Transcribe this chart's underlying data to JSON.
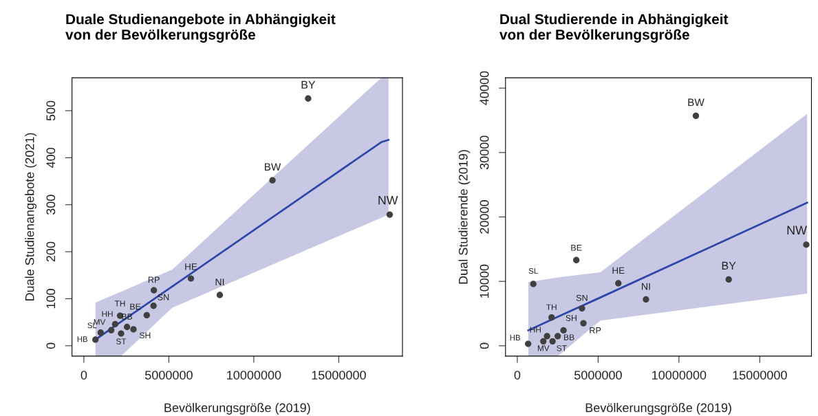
{
  "chart_data": [
    {
      "type": "scatter",
      "title": "Duale Studienangebote in Abhängigkeit\nvon der Bevölkerungsgröße",
      "xlabel": "Bevölkerungsgröße (2019)",
      "ylabel": "Duale Studienangebote (2021)",
      "xlim": [
        -700000,
        18750000
      ],
      "ylim": [
        -22,
        570
      ],
      "xticks": [
        0,
        5000000,
        10000000,
        15000000
      ],
      "yticks": [
        0,
        100,
        200,
        300,
        400,
        500
      ],
      "grid": false,
      "legend": false,
      "series": [
        {
          "type": "scatter",
          "marker": "circle",
          "color": "#404040",
          "x": [
            680000,
            990000,
            1610000,
            1840000,
            2130000,
            2190000,
            2540000,
            2920000,
            3700000,
            4100000,
            4120000,
            6300000,
            8000000,
            11100000,
            13200000,
            18000000
          ],
          "values": [
            13,
            28,
            33,
            46,
            64,
            26,
            40,
            35,
            65,
            85,
            118,
            143,
            108,
            352,
            526,
            279
          ]
        },
        {
          "type": "line",
          "marker": "none",
          "line_style": "solid",
          "color": "#2d46a8",
          "x": [
            680000,
            2190000,
            5200000,
            17500000,
            17930000
          ],
          "values": [
            13,
            51,
            126,
            433,
            438
          ],
          "lower": [
            -22,
            -22,
            81,
            272,
            279
          ],
          "upper": [
            92,
            115,
            162,
            570,
            570
          ]
        }
      ],
      "annotations": [
        {
          "text": "HB",
          "x": 680000,
          "y": 13
        },
        {
          "text": "SL",
          "x": 990000,
          "y": 28
        },
        {
          "text": "MV",
          "x": 1610000,
          "y": 33
        },
        {
          "text": "HH",
          "x": 1840000,
          "y": 46
        },
        {
          "text": "TH",
          "x": 2130000,
          "y": 64
        },
        {
          "text": "ST",
          "x": 2190000,
          "y": 26
        },
        {
          "text": "BB",
          "x": 2540000,
          "y": 40
        },
        {
          "text": "SH",
          "x": 2920000,
          "y": 35
        },
        {
          "text": "BE",
          "x": 3700000,
          "y": 65
        },
        {
          "text": "SN",
          "x": 4100000,
          "y": 85
        },
        {
          "text": "RP",
          "x": 4120000,
          "y": 118
        },
        {
          "text": "HE",
          "x": 6300000,
          "y": 143
        },
        {
          "text": "NI",
          "x": 8000000,
          "y": 108
        },
        {
          "text": "BW",
          "x": 11100000,
          "y": 352
        },
        {
          "text": "BY",
          "x": 13200000,
          "y": 526
        },
        {
          "text": "NW",
          "x": 18000000,
          "y": 279
        }
      ]
    },
    {
      "type": "scatter",
      "title": "Dual Studierende in Abhängigkeit\nvon der Bevölkerungsgröße",
      "xlabel": "Bevölkerungsgröße (2019)",
      "ylabel": "Dual Studierende (2019)",
      "xlim": [
        -730000,
        18200000
      ],
      "ylim": [
        -1600,
        41600
      ],
      "xticks": [
        0,
        5000000,
        10000000,
        15000000
      ],
      "yticks": [
        0,
        10000,
        20000,
        30000,
        40000
      ],
      "grid": false,
      "legend": false,
      "series": [
        {
          "type": "scatter",
          "marker": "circle",
          "color": "#404040",
          "x": [
            670000,
            990000,
            1610000,
            1840000,
            2120000,
            2180000,
            2500000,
            2860000,
            3650000,
            4000000,
            4090000,
            6250000,
            7960000,
            11050000,
            13080000,
            17880000
          ],
          "values": [
            300,
            9600,
            700,
            1500,
            4400,
            700,
            1500,
            2400,
            13300,
            5800,
            3500,
            9700,
            7200,
            35700,
            10300,
            15700
          ]
        },
        {
          "type": "line",
          "marker": "none",
          "line_style": "solid",
          "color": "#2d46a8",
          "x": [
            680000,
            2500000,
            5140000,
            17930000
          ],
          "values": [
            2400,
            4500,
            7500,
            22200
          ],
          "lower": [
            -1600,
            -1600,
            3900,
            8100
          ],
          "upper": [
            9900,
            10600,
            11400,
            36000
          ]
        }
      ],
      "annotations": [
        {
          "text": "HB",
          "x": 670000,
          "y": 300
        },
        {
          "text": "SL",
          "x": 990000,
          "y": 9600
        },
        {
          "text": "MV",
          "x": 1610000,
          "y": 700
        },
        {
          "text": "HH",
          "x": 1840000,
          "y": 1500
        },
        {
          "text": "TH",
          "x": 2120000,
          "y": 4400
        },
        {
          "text": "ST",
          "x": 2180000,
          "y": 700
        },
        {
          "text": "BB",
          "x": 2500000,
          "y": 1500
        },
        {
          "text": "SH",
          "x": 2860000,
          "y": 2400
        },
        {
          "text": "BE",
          "x": 3650000,
          "y": 13300
        },
        {
          "text": "SN",
          "x": 4000000,
          "y": 5800
        },
        {
          "text": "RP",
          "x": 4090000,
          "y": 3500
        },
        {
          "text": "HE",
          "x": 6250000,
          "y": 9700
        },
        {
          "text": "NI",
          "x": 7960000,
          "y": 7200
        },
        {
          "text": "BW",
          "x": 11050000,
          "y": 35700
        },
        {
          "text": "BY",
          "x": 13080000,
          "y": 10300
        },
        {
          "text": "NW",
          "x": 17880000,
          "y": 15700
        }
      ]
    }
  ]
}
